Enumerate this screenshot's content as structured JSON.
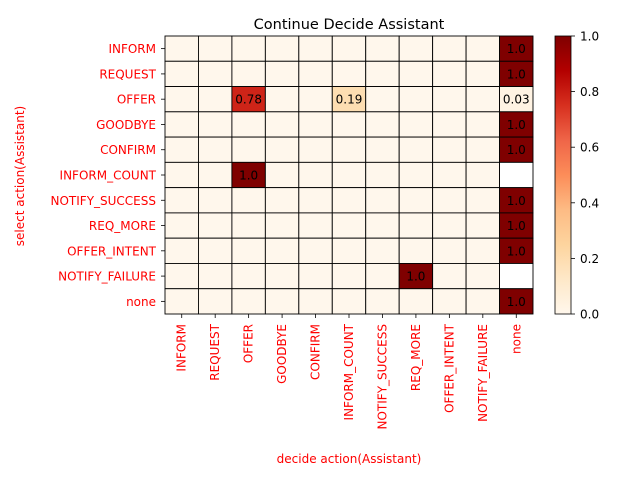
{
  "chart_data": {
    "type": "heatmap",
    "title": "Continue Decide Assistant",
    "xlabel": "decide action(Assistant)",
    "ylabel": "select action(Assistant)",
    "x_categories": [
      "INFORM",
      "REQUEST",
      "OFFER",
      "GOODBYE",
      "CONFIRM",
      "INFORM_COUNT",
      "NOTIFY_SUCCESS",
      "REQ_MORE",
      "OFFER_INTENT",
      "NOTIFY_FAILURE",
      "none"
    ],
    "y_categories": [
      "INFORM",
      "REQUEST",
      "OFFER",
      "GOODBYE",
      "CONFIRM",
      "INFORM_COUNT",
      "NOTIFY_SUCCESS",
      "REQ_MORE",
      "OFFER_INTENT",
      "NOTIFY_FAILURE",
      "none"
    ],
    "cells": [
      {
        "row": "INFORM",
        "col": "none",
        "value": 1.0,
        "label": "1.0"
      },
      {
        "row": "REQUEST",
        "col": "none",
        "value": 1.0,
        "label": "1.0"
      },
      {
        "row": "OFFER",
        "col": "OFFER",
        "value": 0.78,
        "label": "0.78"
      },
      {
        "row": "OFFER",
        "col": "INFORM_COUNT",
        "value": 0.19,
        "label": "0.19"
      },
      {
        "row": "OFFER",
        "col": "none",
        "value": 0.03,
        "label": "0.03"
      },
      {
        "row": "GOODBYE",
        "col": "none",
        "value": 1.0,
        "label": "1.0"
      },
      {
        "row": "CONFIRM",
        "col": "none",
        "value": 1.0,
        "label": "1.0"
      },
      {
        "row": "INFORM_COUNT",
        "col": "OFFER",
        "value": 1.0,
        "label": "1.0"
      },
      {
        "row": "NOTIFY_SUCCESS",
        "col": "none",
        "value": 1.0,
        "label": "1.0"
      },
      {
        "row": "REQ_MORE",
        "col": "none",
        "value": 1.0,
        "label": "1.0"
      },
      {
        "row": "OFFER_INTENT",
        "col": "none",
        "value": 1.0,
        "label": "1.0"
      },
      {
        "row": "NOTIFY_FAILURE",
        "col": "REQ_MORE",
        "value": 1.0,
        "label": "1.0"
      },
      {
        "row": "none",
        "col": "none",
        "value": 1.0,
        "label": "1.0"
      }
    ],
    "blank_cells": [
      {
        "row": "INFORM_COUNT",
        "col": "none"
      },
      {
        "row": "NOTIFY_FAILURE",
        "col": "none"
      }
    ],
    "colorbar": {
      "colormap": "OrRd",
      "range": [
        0.0,
        1.0
      ],
      "ticks": [
        "0.0",
        "0.2",
        "0.4",
        "0.6",
        "0.8",
        "1.0"
      ]
    },
    "colors": {
      "tick_label": "#ff0000",
      "cell_edge": "#000000",
      "blank_cell": "#ffffff",
      "title": "#000000"
    }
  }
}
